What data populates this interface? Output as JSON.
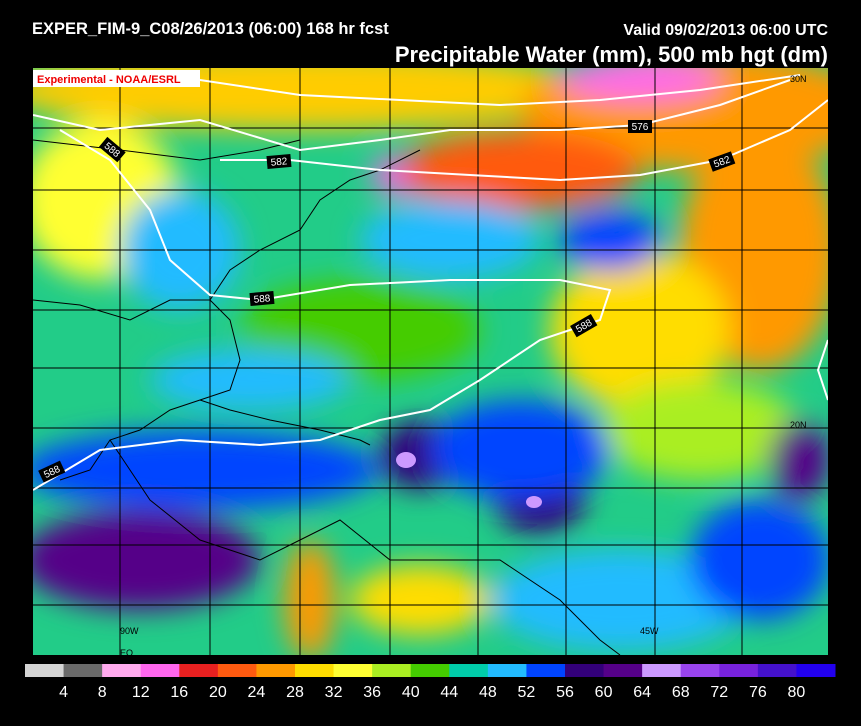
{
  "header": {
    "run": "EXPER_FIM-9_C08/26/2013 (06:00) 168 hr fcst",
    "valid": "Valid 09/02/2013 06:00 UTC",
    "title": "Precipitable Water (mm), 500 mb hgt (dm)",
    "badge": "Experimental - NOAA/ESRL"
  },
  "map": {
    "latlon_labels": [
      "30N",
      "20N",
      "90W",
      "45W",
      "EQ"
    ],
    "contour_labels": [
      "588",
      "582",
      "576",
      "582",
      "588",
      "588",
      "588"
    ]
  },
  "colorbar": {
    "colors": [
      "#d4d4d4",
      "#6a6a6a",
      "#ffaaee",
      "#ff66ee",
      "#e82020",
      "#ff5a10",
      "#ff9900",
      "#ffdd00",
      "#ffff33",
      "#aaee22",
      "#44cc00",
      "#00ccaa",
      "#22bbff",
      "#0044ff",
      "#33007a",
      "#550088",
      "#cc99ff",
      "#9944ee",
      "#7722dd",
      "#4411cc",
      "#2200ee"
    ],
    "ticks": [
      4,
      8,
      12,
      16,
      20,
      24,
      28,
      32,
      36,
      40,
      44,
      48,
      52,
      56,
      60,
      64,
      68,
      72,
      76,
      80
    ]
  }
}
